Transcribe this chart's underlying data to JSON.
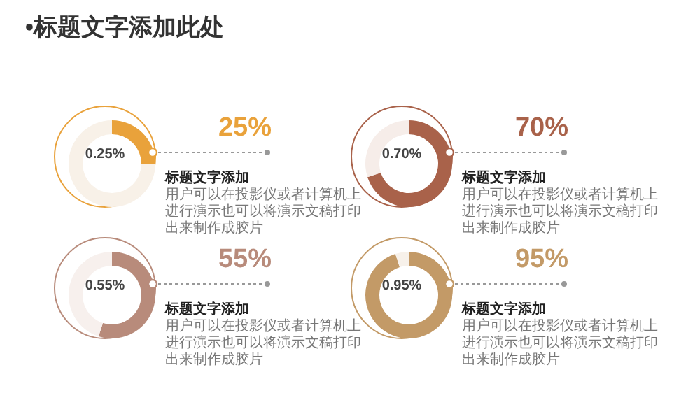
{
  "chart_data": [
    {
      "type": "donut",
      "title": "•标题文字添加此处",
      "subtitle": "标题文字添加",
      "categories": [
        null,
        null
      ],
      "values": [
        25,
        75
      ],
      "colors": [
        "#e9a23b",
        "#f8f1e8"
      ],
      "annotations": [
        "0.25%",
        "25%",
        "用户可以在投影仪或者计算机上进行演示也可以将演示文稿打印出来制作成胶片"
      ]
    },
    {
      "type": "donut",
      "subtitle": "标题文字添加",
      "categories": [
        null,
        null
      ],
      "values": [
        70,
        30
      ],
      "colors": [
        "#a9624a",
        "#f6ede9"
      ],
      "annotations": [
        "0.70%",
        "70%",
        "用户可以在投影仪或者计算机上进行演示也可以将演示文稿打印出来制作成胶片"
      ]
    },
    {
      "type": "donut",
      "subtitle": "标题文字添加",
      "categories": [
        null,
        null
      ],
      "values": [
        55,
        45
      ],
      "colors": [
        "#b88b7b",
        "#f7f0ed"
      ],
      "annotations": [
        "0.55%",
        "55%",
        "用户可以在投影仪或者计算机上进行演示也可以将演示文稿打印出来制作成胶片"
      ]
    },
    {
      "type": "donut",
      "subtitle": "标题文字添加",
      "categories": [
        null,
        null
      ],
      "values": [
        95,
        5
      ],
      "colors": [
        "#c39a67",
        "#f7f1ea"
      ],
      "annotations": [
        "0.95%",
        "95%",
        "用户可以在投影仪或者计算机上进行演示也可以将演示文稿打印出来制作成胶片"
      ]
    }
  ]
}
